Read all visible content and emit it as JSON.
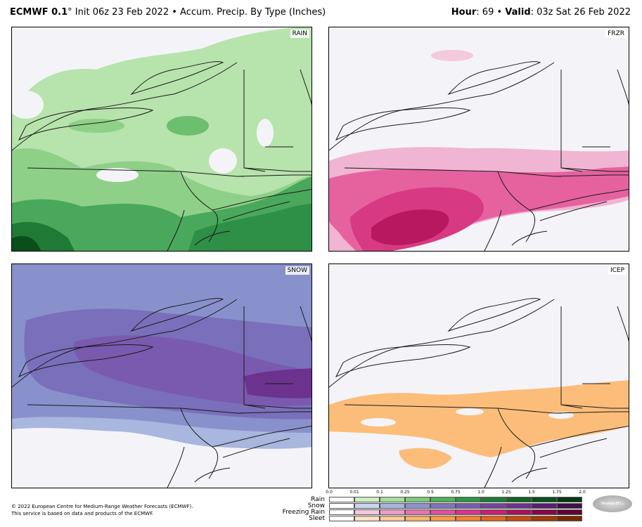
{
  "header": {
    "model": "ECMWF 0.1",
    "deg": "°",
    "init": " Init 06z 23 Feb 2022",
    "sep": " • ",
    "field": "Accum. Precip. By Type (Inches)",
    "hour_label": "Hour",
    "hour_value": ": 69",
    "valid_label": "Valid",
    "valid_value": ": 03z Sat 26 Feb 2022"
  },
  "panels": [
    {
      "key": "rain",
      "label": "RAIN"
    },
    {
      "key": "frzr",
      "label": "FRZR"
    },
    {
      "key": "snow",
      "label": "SNOW"
    },
    {
      "key": "icep",
      "label": "ICEP"
    }
  ],
  "footer": {
    "line1": "© 2022 European Centre for Medium-Range Weather Forecasts (ECMWF).",
    "line2": "This service is based on data and products of the ECMWF."
  },
  "legend": {
    "ticks": [
      "0.0",
      "0.01",
      "0.1",
      "0.25",
      "0.5",
      "0.75",
      "1.0",
      "1.25",
      "1.5",
      "1.75",
      "2.0"
    ],
    "rows": [
      {
        "name": "Rain",
        "colors": [
          "#ffffff",
          "#cdeec3",
          "#a6dea0",
          "#7cc97c",
          "#52b05c",
          "#2f9447",
          "#1e7a36",
          "#136326",
          "#0b4e1b",
          "#063812"
        ]
      },
      {
        "name": "Snow",
        "colors": [
          "#ffffff",
          "#c8d6ee",
          "#a6b4dc",
          "#8b92cc",
          "#7f75bd",
          "#7a5cae",
          "#73479d",
          "#6b338d",
          "#57216f",
          "#3d1150"
        ]
      },
      {
        "name": "Freezing Rain",
        "colors": [
          "#ffffff",
          "#f4c9dc",
          "#ec9fc4",
          "#e574ac",
          "#e0519a",
          "#d93587",
          "#c7216f",
          "#a8135a",
          "#850945",
          "#5e0230"
        ]
      },
      {
        "name": "Sleet",
        "colors": [
          "#ffffff",
          "#fde0c0",
          "#fcc893",
          "#fbb167",
          "#f89a45",
          "#f2802c",
          "#e2641a",
          "#c74d0e",
          "#a33a06",
          "#7a2902"
        ]
      }
    ]
  },
  "brand": "WeatherBELL"
}
